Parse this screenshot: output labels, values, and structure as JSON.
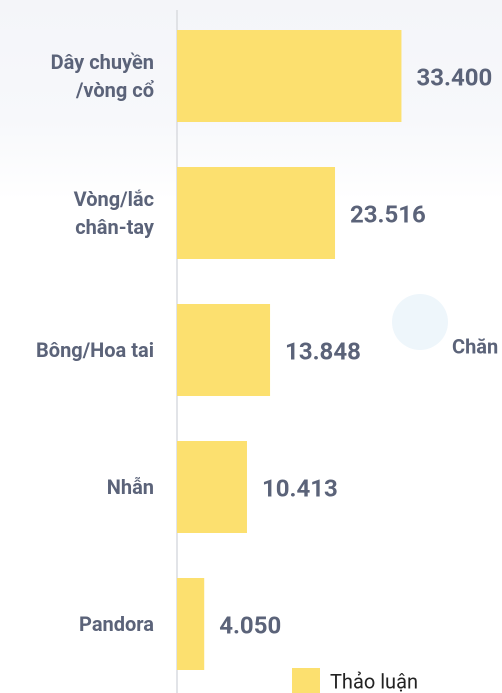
{
  "chart_data": {
    "type": "barh",
    "categories": [
      "Dây chuyền\n/vòng cổ",
      "Vòng/lắc\nchân-tay",
      "Bông/Hoa tai",
      "Nhẫn",
      "Pandora"
    ],
    "series": [
      {
        "name": "Thảo luận",
        "color": "#fce06f",
        "values": [
          33400,
          23516,
          13848,
          10413,
          4050
        ],
        "value_labels": [
          "33.400",
          "23.516",
          "13.848",
          "10.413",
          "4.050"
        ]
      }
    ],
    "xlim": [
      0,
      50000
    ],
    "annotation": "Chăn"
  }
}
